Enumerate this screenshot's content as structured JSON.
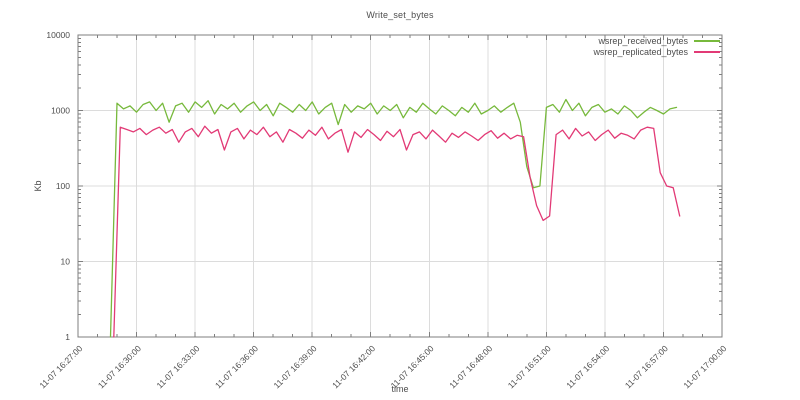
{
  "chart_data": {
    "type": "line",
    "title": "Write_set_bytes",
    "xlabel": "time",
    "ylabel": "Kb",
    "y_scale": "log",
    "ylim": [
      1,
      10000
    ],
    "y_tick_values": [
      1,
      10,
      100,
      1000,
      10000
    ],
    "y_tick_labels": [
      "1",
      "10",
      "100",
      "1000",
      "10000"
    ],
    "x_range_seconds": [
      0,
      1980
    ],
    "x_tick_seconds": [
      0,
      180,
      360,
      540,
      720,
      900,
      1080,
      1260,
      1440,
      1620,
      1800,
      1980
    ],
    "x_tick_labels": [
      "11-07 16:27:00",
      "11-07 16:30:00",
      "11-07 16:33:00",
      "11-07 16:36:00",
      "11-07 16:39:00",
      "11-07 16:42:00",
      "11-07 16:45:00",
      "11-07 16:48:00",
      "11-07 16:51:00",
      "11-07 16:54:00",
      "11-07 16:57:00",
      "11-07 17:00:00"
    ],
    "x_minor_step_seconds": 60,
    "grid": "major-both-axes",
    "legend_position": "top-right-inside",
    "colors": {
      "grid": "#dcdcdc",
      "border": "#7f7f7f",
      "text": "#4d4d4d",
      "background": "#ffffff"
    },
    "series": [
      {
        "name": "wsrep_received_bytes",
        "color": "#77b93c",
        "start_seconds": 100,
        "step_seconds": 20,
        "values": [
          1,
          1250,
          1050,
          1150,
          950,
          1200,
          1300,
          1000,
          1250,
          700,
          1150,
          1250,
          950,
          1300,
          1100,
          1350,
          900,
          1200,
          1050,
          1250,
          950,
          1150,
          1300,
          1000,
          1200,
          850,
          1250,
          1100,
          950,
          1200,
          1000,
          1300,
          900,
          1100,
          1250,
          650,
          1200,
          950,
          1150,
          1050,
          1250,
          900,
          1150,
          1000,
          1200,
          800,
          1100,
          950,
          1250,
          1050,
          900,
          1150,
          1000,
          850,
          1100,
          950,
          1250,
          900,
          1000,
          1150,
          950,
          1100,
          1250,
          700,
          180,
          95,
          100,
          1100,
          1200,
          950,
          1400,
          1000,
          1250,
          850,
          1100,
          1200,
          950,
          1050,
          900,
          1150,
          1000,
          800,
          950,
          1100,
          1000,
          900,
          1050,
          1100
        ]
      },
      {
        "name": "wsrep_replicated_bytes",
        "color": "#e23a76",
        "start_seconds": 110,
        "step_seconds": 20,
        "values": [
          1,
          600,
          560,
          520,
          580,
          480,
          550,
          600,
          500,
          560,
          380,
          520,
          580,
          450,
          620,
          500,
          560,
          300,
          520,
          580,
          420,
          550,
          480,
          600,
          450,
          520,
          380,
          560,
          500,
          430,
          550,
          470,
          600,
          420,
          500,
          560,
          280,
          520,
          440,
          560,
          480,
          400,
          530,
          450,
          560,
          300,
          480,
          520,
          420,
          550,
          460,
          380,
          500,
          440,
          520,
          460,
          400,
          480,
          540,
          430,
          500,
          420,
          470,
          450,
          130,
          55,
          35,
          40,
          480,
          550,
          420,
          580,
          460,
          520,
          400,
          480,
          550,
          430,
          500,
          470,
          420,
          550,
          600,
          580,
          150,
          100,
          95,
          40
        ]
      }
    ]
  }
}
